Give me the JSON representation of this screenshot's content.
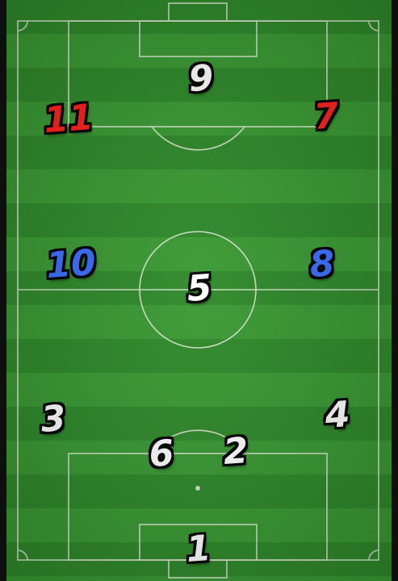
{
  "pitch": {
    "grass_dark": "#2f8a2a",
    "grass_light": "#3a9a33",
    "line_color": "#e8f0e0"
  },
  "colors": {
    "white": "#ffffff",
    "red": "#ff2020",
    "blue": "#3a6fff"
  },
  "players": [
    {
      "number": "9",
      "color": "white"
    },
    {
      "number": "11",
      "color": "red"
    },
    {
      "number": "7",
      "color": "red"
    },
    {
      "number": "10",
      "color": "blue"
    },
    {
      "number": "8",
      "color": "blue"
    },
    {
      "number": "5",
      "color": "white"
    },
    {
      "number": "3",
      "color": "white"
    },
    {
      "number": "4",
      "color": "white"
    },
    {
      "number": "6",
      "color": "white"
    },
    {
      "number": "2",
      "color": "white"
    },
    {
      "number": "1",
      "color": "white"
    }
  ]
}
